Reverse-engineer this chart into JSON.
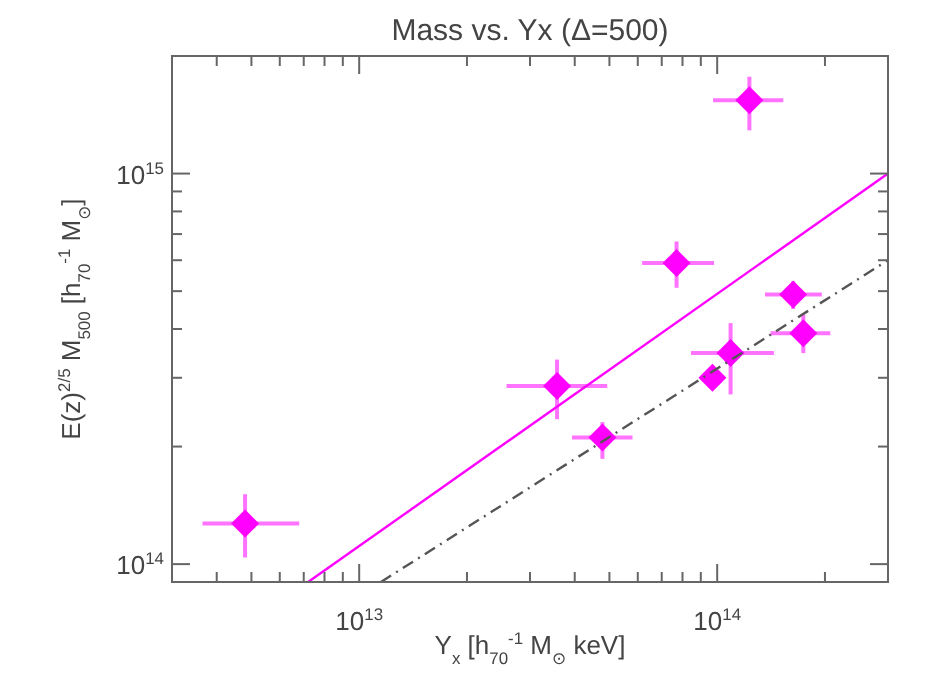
{
  "chart_data": {
    "type": "scatter",
    "title": "Mass vs. Yx (Δ=500)",
    "xlabel": "Y$_{x}$ [h$_{70}$$^{-1}$ M$_{⊙}$ keV]",
    "ylabel": "E(z)$^{2/5}$ M$_{500}$ [h$_{70}$$^{-1}$ M$_{⊙}$]",
    "log": "xy",
    "xlim": [
      3000000000000.0,
      300000000000000.0
    ],
    "ylim": [
      90000000000000.0,
      2000000000000000.0
    ],
    "xticks": [
      {
        "value": 4000000000000.0,
        "label": null
      },
      {
        "value": 5000000000000.0,
        "label": null
      },
      {
        "value": 6000000000000.0,
        "label": null
      },
      {
        "value": 7000000000000.0,
        "label": null
      },
      {
        "value": 8000000000000.0,
        "label": null
      },
      {
        "value": 9000000000000.0,
        "label": null
      },
      {
        "value": 10000000000000.0,
        "label": "10$^{13}$"
      },
      {
        "value": 20000000000000.0,
        "label": null
      },
      {
        "value": 30000000000000.0,
        "label": null
      },
      {
        "value": 40000000000000.0,
        "label": null
      },
      {
        "value": 50000000000000.0,
        "label": null
      },
      {
        "value": 60000000000000.0,
        "label": null
      },
      {
        "value": 70000000000000.0,
        "label": null
      },
      {
        "value": 80000000000000.0,
        "label": null
      },
      {
        "value": 90000000000000.0,
        "label": null
      },
      {
        "value": 100000000000000.0,
        "label": "10$^{14}$"
      },
      {
        "value": 200000000000000.0,
        "label": null
      }
    ],
    "yticks": [
      {
        "value": 100000000000000.0,
        "label": "10$^{14}$"
      },
      {
        "value": 200000000000000.0,
        "label": null
      },
      {
        "value": 300000000000000.0,
        "label": null
      },
      {
        "value": 400000000000000.0,
        "label": null
      },
      {
        "value": 500000000000000.0,
        "label": null
      },
      {
        "value": 600000000000000.0,
        "label": null
      },
      {
        "value": 700000000000000.0,
        "label": null
      },
      {
        "value": 800000000000000.0,
        "label": null
      },
      {
        "value": 900000000000000.0,
        "label": null
      },
      {
        "value": 1000000000000000.0,
        "label": "10$^{15}$"
      }
    ],
    "series": [
      {
        "color": "#ff00ff",
        "marker": "diamond",
        "x": [
          4800000000000.0,
          35700000000000.0,
          47800000000000.0,
          77000000000000.0,
          123000000000000.0,
          97000000000000.0,
          109000000000000.0,
          163000000000000.0,
          174000000000000.0
        ],
        "values": [
          127000000000000.0,
          286000000000000.0,
          211000000000000.0,
          590000000000000.0,
          1540000000000000.0,
          300000000000000.0,
          347000000000000.0,
          490000000000000.0,
          390000000000000.0
        ],
        "xerrors": [
          [
            3650000000000.0,
            6800000000000.0
          ],
          [
            25800000000000.0,
            49300000000000.0
          ],
          [
            39300000000000.0,
            58000000000000.0
          ],
          [
            61700000000000.0,
            98000000000000.0
          ],
          [
            97400000000000.0,
            153000000000000.0
          ],
          null,
          [
            84500000000000.0,
            144000000000000.0
          ],
          [
            136000000000000.0,
            196000000000000.0
          ],
          [
            141000000000000.0,
            207000000000000.0
          ]
        ],
        "errors": [
          [
            104000000000000.0,
            151000000000000.0
          ],
          [
            235000000000000.0,
            334000000000000.0
          ],
          [
            186000000000000.0,
            231000000000000.0
          ],
          [
            510000000000000.0,
            670000000000000.0
          ],
          [
            1290000000000000.0,
            1770000000000000.0
          ],
          null,
          [
            272000000000000.0,
            414000000000000.0
          ],
          [
            450000000000000.0,
            530000000000000.0
          ],
          [
            347000000000000.0,
            436000000000000.0
          ]
        ]
      },
      {
        "type": "line",
        "color": "#ff00ff",
        "line_style": "solid",
        "x": [
          7200000000000.0,
          300000000000000.0
        ],
        "values": [
          90000000000000.0,
          1000000000000000.0
        ]
      },
      {
        "type": "line",
        "color": "#555555",
        "line_style": "dashed",
        "x": [
          11500000000000.0,
          300000000000000.0
        ],
        "values": [
          90000000000000.0,
          600000000000000.0
        ]
      }
    ]
  }
}
